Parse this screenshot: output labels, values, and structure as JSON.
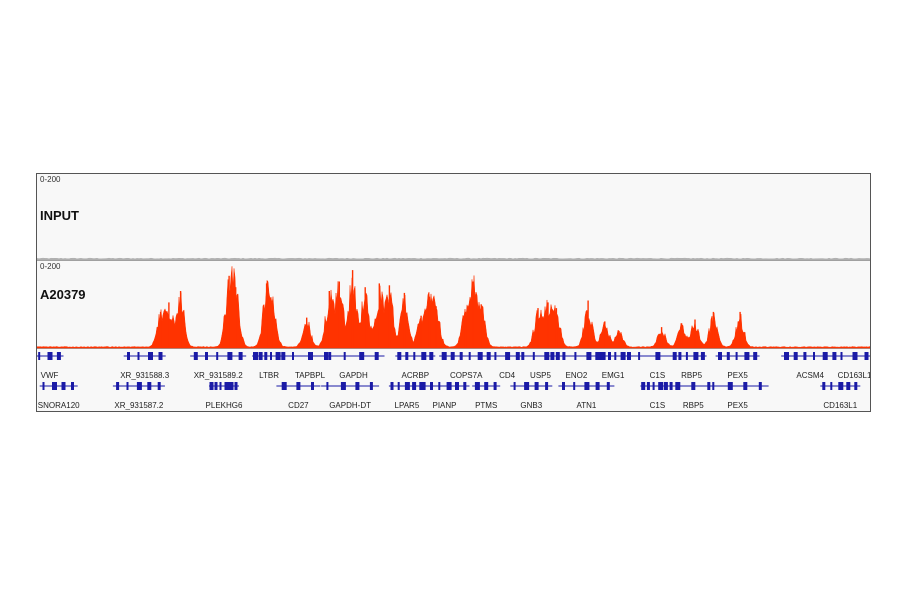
{
  "tracks": [
    {
      "name": "INPUT",
      "range": "0-200"
    },
    {
      "name": "A20379",
      "range": "0-200"
    }
  ],
  "colors": {
    "signal": "#ff3300",
    "input": "#b0b0b0",
    "gene": "#1a1aa6",
    "panel_bg": "#f8f8f8",
    "border": "#555555"
  },
  "chart_data": {
    "type": "area",
    "tracks": [
      {
        "name": "INPUT",
        "ylim": [
          0,
          200
        ],
        "baseline_level": 3
      },
      {
        "name": "A20379",
        "ylim": [
          0,
          200
        ],
        "peaks": [
          {
            "x": 0.148,
            "height": 95
          },
          {
            "x": 0.158,
            "height": 120
          },
          {
            "x": 0.172,
            "height": 150
          },
          {
            "x": 0.23,
            "height": 190
          },
          {
            "x": 0.238,
            "height": 160
          },
          {
            "x": 0.275,
            "height": 170
          },
          {
            "x": 0.283,
            "height": 95
          },
          {
            "x": 0.323,
            "height": 80
          },
          {
            "x": 0.35,
            "height": 150
          },
          {
            "x": 0.362,
            "height": 175
          },
          {
            "x": 0.378,
            "height": 205
          },
          {
            "x": 0.393,
            "height": 160
          },
          {
            "x": 0.41,
            "height": 170
          },
          {
            "x": 0.422,
            "height": 165
          },
          {
            "x": 0.44,
            "height": 145
          },
          {
            "x": 0.46,
            "height": 85
          },
          {
            "x": 0.47,
            "height": 135
          },
          {
            "x": 0.478,
            "height": 110
          },
          {
            "x": 0.513,
            "height": 95
          },
          {
            "x": 0.522,
            "height": 175
          },
          {
            "x": 0.532,
            "height": 115
          },
          {
            "x": 0.6,
            "height": 105
          },
          {
            "x": 0.612,
            "height": 120
          },
          {
            "x": 0.622,
            "height": 105
          },
          {
            "x": 0.66,
            "height": 125
          },
          {
            "x": 0.68,
            "height": 70
          },
          {
            "x": 0.697,
            "height": 45
          },
          {
            "x": 0.748,
            "height": 55
          },
          {
            "x": 0.772,
            "height": 65
          },
          {
            "x": 0.788,
            "height": 75
          },
          {
            "x": 0.81,
            "height": 95
          },
          {
            "x": 0.842,
            "height": 95
          }
        ]
      }
    ]
  },
  "genes": {
    "row1": [
      {
        "label": "VWF",
        "x": 0.015
      },
      {
        "label": "XR_931588.3",
        "x": 0.129
      },
      {
        "label": "XR_931589.2",
        "x": 0.217
      },
      {
        "label": "LTBR",
        "x": 0.278
      },
      {
        "label": "TAPBPL",
        "x": 0.327
      },
      {
        "label": "GAPDH",
        "x": 0.379
      },
      {
        "label": "ACRBP",
        "x": 0.453
      },
      {
        "label": "COPS7A",
        "x": 0.514
      },
      {
        "label": "CD4",
        "x": 0.563
      },
      {
        "label": "USP5",
        "x": 0.603
      },
      {
        "label": "ENO2",
        "x": 0.646
      },
      {
        "label": "EMG1",
        "x": 0.69
      },
      {
        "label": "C1S",
        "x": 0.743
      },
      {
        "label": "RBP5",
        "x": 0.784
      },
      {
        "label": "PEX5",
        "x": 0.839
      },
      {
        "label": "ACSM4",
        "x": 0.926
      },
      {
        "label": "CD163L1",
        "x": 0.979
      }
    ],
    "row2": [
      {
        "label": "SNORA120",
        "x": 0.026
      },
      {
        "label": "XR_931587.2",
        "x": 0.122
      },
      {
        "label": "PLEKHG6",
        "x": 0.224
      },
      {
        "label": "CD27",
        "x": 0.313
      },
      {
        "label": "GAPDH-DT",
        "x": 0.375
      },
      {
        "label": "LPAR5",
        "x": 0.443
      },
      {
        "label": "PIANP",
        "x": 0.488
      },
      {
        "label": "PTMS",
        "x": 0.538
      },
      {
        "label": "GNB3",
        "x": 0.592
      },
      {
        "label": "ATN1",
        "x": 0.658
      },
      {
        "label": "C1S",
        "x": 0.743
      },
      {
        "label": "RBP5",
        "x": 0.786
      },
      {
        "label": "PEX5",
        "x": 0.839
      },
      {
        "label": "CD163L1",
        "x": 0.962
      }
    ]
  }
}
